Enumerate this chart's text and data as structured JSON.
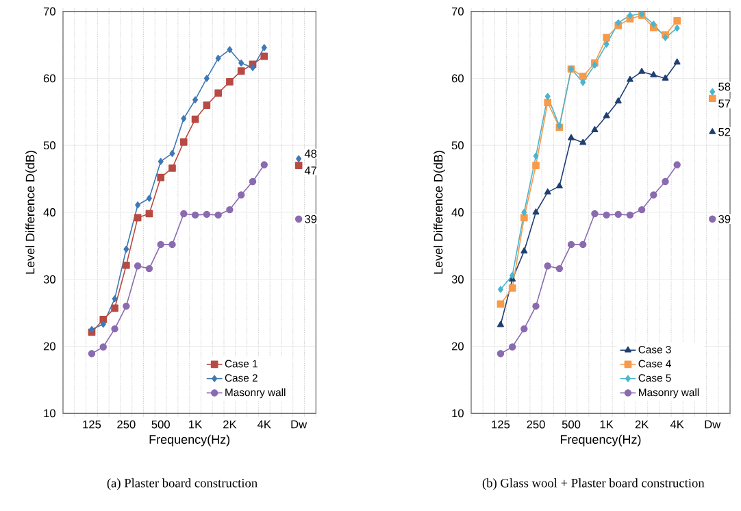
{
  "chart_data": [
    {
      "type": "line",
      "xlabel": "Frequency(Hz)",
      "ylabel": "Level Difference D(dB)",
      "categories": [
        null,
        null,
        "125",
        null,
        null,
        "250",
        null,
        null,
        "500",
        null,
        null,
        "1K",
        null,
        null,
        "2K",
        null,
        null,
        "4K",
        null,
        null,
        "Dw",
        null
      ],
      "ylim": [
        10,
        70
      ],
      "yticks": [
        10,
        20,
        30,
        40,
        50,
        60,
        70
      ],
      "grid": true,
      "legend": "bottom right",
      "annotations": [
        "(a) Plaster board construction"
      ],
      "series": [
        {
          "name": "Case 1",
          "color": "#b84a44",
          "marker": "square",
          "values": [
            null,
            null,
            22.1,
            24.0,
            25.7,
            32.1,
            39.2,
            39.8,
            45.2,
            46.6,
            50.5,
            53.9,
            56.0,
            57.8,
            59.5,
            61.1,
            62.1,
            63.3,
            null,
            null,
            47,
            null
          ],
          "value_labels": [
            null,
            null,
            null,
            null,
            null,
            null,
            null,
            null,
            null,
            null,
            null,
            null,
            null,
            null,
            null,
            null,
            null,
            null,
            null,
            null,
            "47",
            null
          ]
        },
        {
          "name": "Case 2",
          "color": "#3f78b5",
          "marker": "diamond",
          "values": [
            null,
            null,
            22.5,
            23.3,
            27.1,
            34.5,
            41.1,
            42.1,
            47.6,
            48.8,
            54.0,
            56.8,
            60.0,
            63.0,
            64.3,
            62.3,
            61.6,
            64.6,
            null,
            null,
            48,
            null
          ],
          "value_labels": [
            null,
            null,
            null,
            null,
            null,
            null,
            null,
            null,
            null,
            null,
            null,
            null,
            null,
            null,
            null,
            null,
            null,
            null,
            null,
            null,
            "48",
            null
          ]
        },
        {
          "name": "Masonry wall",
          "color": "#8a6bb0",
          "marker": "circle",
          "values": [
            null,
            null,
            18.9,
            19.9,
            22.6,
            26.0,
            32.0,
            31.6,
            35.2,
            35.2,
            39.8,
            39.6,
            39.7,
            39.6,
            40.4,
            42.6,
            44.6,
            47.1,
            null,
            null,
            39,
            null
          ],
          "value_labels": [
            null,
            null,
            null,
            null,
            null,
            null,
            null,
            null,
            null,
            null,
            null,
            null,
            null,
            null,
            null,
            null,
            null,
            null,
            null,
            null,
            "39",
            null
          ]
        }
      ]
    },
    {
      "type": "line",
      "xlabel": "Frequency(Hz)",
      "ylabel": "Level Difference D(dB)",
      "categories": [
        null,
        null,
        "125",
        null,
        null,
        "250",
        null,
        null,
        "500",
        null,
        null,
        "1K",
        null,
        null,
        "2K",
        null,
        null,
        "4K",
        null,
        null,
        "Dw",
        null
      ],
      "ylim": [
        10,
        70
      ],
      "yticks": [
        10,
        20,
        30,
        40,
        50,
        60,
        70
      ],
      "grid": true,
      "legend": "bottom right",
      "annotations": [
        "(b) Glass wool + Plaster board construction"
      ],
      "series": [
        {
          "name": "Case 3",
          "color": "#1f3f73",
          "marker": "triangle",
          "values": [
            null,
            null,
            23.2,
            30.0,
            34.2,
            40.0,
            43.0,
            43.9,
            51.1,
            50.4,
            52.3,
            54.4,
            56.6,
            59.8,
            61.0,
            60.5,
            60.0,
            62.4,
            null,
            null,
            52,
            null
          ],
          "value_labels": [
            null,
            null,
            null,
            null,
            null,
            null,
            null,
            null,
            null,
            null,
            null,
            null,
            null,
            null,
            null,
            null,
            null,
            null,
            null,
            null,
            "52",
            null
          ]
        },
        {
          "name": "Case 4",
          "color": "#f79a4a",
          "marker": "square",
          "values": [
            null,
            null,
            26.3,
            28.7,
            39.2,
            47.0,
            56.4,
            52.7,
            61.4,
            60.3,
            62.3,
            66.1,
            67.9,
            68.9,
            69.4,
            67.6,
            66.5,
            68.6,
            null,
            null,
            57,
            null
          ],
          "value_labels": [
            null,
            null,
            null,
            null,
            null,
            null,
            null,
            null,
            null,
            null,
            null,
            null,
            null,
            null,
            null,
            null,
            null,
            null,
            null,
            null,
            "57",
            null
          ]
        },
        {
          "name": "Case 5",
          "color": "#4bb5cf",
          "marker": "diamond",
          "values": [
            null,
            null,
            28.5,
            30.6,
            40.0,
            48.4,
            57.3,
            52.9,
            61.4,
            59.4,
            62.0,
            65.1,
            68.3,
            69.4,
            69.6,
            68.1,
            66.1,
            67.5,
            null,
            null,
            58,
            null
          ],
          "value_labels": [
            null,
            null,
            null,
            null,
            null,
            null,
            null,
            null,
            null,
            null,
            null,
            null,
            null,
            null,
            null,
            null,
            null,
            null,
            null,
            null,
            "58",
            null
          ]
        },
        {
          "name": "Masonry wall",
          "color": "#8a6bb0",
          "marker": "circle",
          "values": [
            null,
            null,
            18.9,
            19.9,
            22.6,
            26.0,
            32.0,
            31.6,
            35.2,
            35.2,
            39.8,
            39.6,
            39.7,
            39.6,
            40.4,
            42.6,
            44.6,
            47.1,
            null,
            null,
            39,
            null
          ],
          "value_labels": [
            null,
            null,
            null,
            null,
            null,
            null,
            null,
            null,
            null,
            null,
            null,
            null,
            null,
            null,
            null,
            null,
            null,
            null,
            null,
            null,
            "39",
            null
          ]
        }
      ]
    }
  ]
}
